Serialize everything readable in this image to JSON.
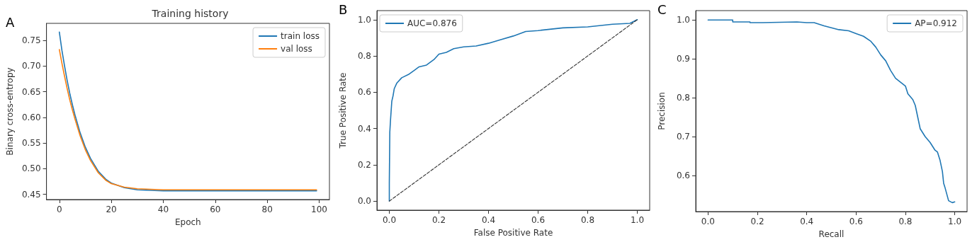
{
  "chart_data": [
    {
      "type": "line",
      "title": "Training history",
      "xlabel": "Epoch",
      "ylabel": "Binary cross-entropy",
      "annotations": [
        "A"
      ],
      "legend": "top right",
      "grid": false,
      "marker": "none",
      "line_style": "solid",
      "xlim": [
        -4.95,
        103.95
      ],
      "xticks": [
        0,
        20,
        40,
        60,
        80,
        100
      ],
      "ylim": [
        0.44,
        0.783
      ],
      "yticks": [
        {
          "value": 0.45,
          "label": "0.45"
        },
        {
          "value": 0.5,
          "label": "0.50"
        },
        {
          "value": 0.55,
          "label": "0.55"
        },
        {
          "value": 0.6,
          "label": "0.60"
        },
        {
          "value": 0.65,
          "label": "0.65"
        },
        {
          "value": 0.7,
          "label": "0.70"
        },
        {
          "value": 0.75,
          "label": "0.75"
        }
      ],
      "series": [
        {
          "name": "train loss",
          "color": "#1f77b4",
          "x": [
            0,
            1,
            2,
            3,
            4,
            5,
            6,
            8,
            10,
            12,
            15,
            18,
            20,
            25,
            30,
            35,
            40,
            60,
            80,
            99
          ],
          "values": [
            0.766,
            0.73,
            0.7,
            0.672,
            0.647,
            0.625,
            0.605,
            0.57,
            0.542,
            0.52,
            0.495,
            0.479,
            0.472,
            0.463,
            0.459,
            0.458,
            0.457,
            0.457,
            0.457,
            0.457
          ]
        },
        {
          "name": "val loss",
          "color": "#ff7f0e",
          "x": [
            0,
            1,
            2,
            3,
            4,
            5,
            6,
            8,
            10,
            12,
            15,
            18,
            20,
            25,
            30,
            35,
            40,
            60,
            80,
            99
          ],
          "values": [
            0.732,
            0.705,
            0.68,
            0.656,
            0.634,
            0.615,
            0.597,
            0.564,
            0.537,
            0.516,
            0.492,
            0.477,
            0.471,
            0.464,
            0.461,
            0.46,
            0.459,
            0.459,
            0.459,
            0.459
          ]
        }
      ]
    },
    {
      "type": "line",
      "xlabel": "False Positive Rate",
      "ylabel": "True Positive Rate",
      "annotations": [
        "B"
      ],
      "legend": "top left",
      "grid": false,
      "marker": "none",
      "xlim": [
        -0.05,
        1.05
      ],
      "xticks": [
        {
          "value": 0,
          "label": "0.0"
        },
        {
          "value": 0.2,
          "label": "0.2"
        },
        {
          "value": 0.4,
          "label": "0.4"
        },
        {
          "value": 0.6,
          "label": "0.6"
        },
        {
          "value": 0.8,
          "label": "0.8"
        },
        {
          "value": 1,
          "label": "1.0"
        }
      ],
      "ylim": [
        -0.05,
        1.05
      ],
      "yticks": [
        {
          "value": 0,
          "label": "0.0"
        },
        {
          "value": 0.2,
          "label": "0.2"
        },
        {
          "value": 0.4,
          "label": "0.4"
        },
        {
          "value": 0.6,
          "label": "0.6"
        },
        {
          "value": 0.8,
          "label": "0.8"
        },
        {
          "value": 1,
          "label": "1.0"
        }
      ],
      "series": [
        {
          "name": "AUC=0.876",
          "color": "#1f77b4",
          "line_style": "solid",
          "x": [
            0,
            0,
            0.002,
            0.005,
            0.01,
            0.015,
            0.02,
            0.03,
            0.05,
            0.08,
            0.1,
            0.12,
            0.15,
            0.18,
            0.2,
            0.23,
            0.26,
            0.3,
            0.35,
            0.4,
            0.45,
            0.5,
            0.55,
            0.6,
            0.7,
            0.8,
            0.9,
            0.97,
            1
          ],
          "values": [
            0,
            0.1,
            0.38,
            0.45,
            0.55,
            0.58,
            0.62,
            0.65,
            0.68,
            0.7,
            0.72,
            0.74,
            0.75,
            0.78,
            0.81,
            0.82,
            0.84,
            0.85,
            0.855,
            0.87,
            0.89,
            0.91,
            0.935,
            0.94,
            0.955,
            0.96,
            0.975,
            0.98,
            1
          ]
        },
        {
          "color": "#333333",
          "line_style": "dashed",
          "x": [
            0,
            1
          ],
          "values": [
            0,
            1
          ]
        }
      ]
    },
    {
      "type": "line",
      "xlabel": "Recall",
      "ylabel": "Precision",
      "annotations": [
        "C"
      ],
      "legend": "top right",
      "grid": false,
      "marker": "none",
      "line_style": "solid",
      "xlim": [
        -0.05,
        1.05
      ],
      "xticks": [
        {
          "value": 0,
          "label": "0.0"
        },
        {
          "value": 0.2,
          "label": "0.2"
        },
        {
          "value": 0.4,
          "label": "0.4"
        },
        {
          "value": 0.6,
          "label": "0.6"
        },
        {
          "value": 0.8,
          "label": "0.8"
        },
        {
          "value": 1,
          "label": "1.0"
        }
      ],
      "ylim": [
        0.507,
        1.024
      ],
      "yticks": [
        {
          "value": 0.6,
          "label": "0.6"
        },
        {
          "value": 0.7,
          "label": "0.7"
        },
        {
          "value": 0.8,
          "label": "0.8"
        },
        {
          "value": 0.9,
          "label": "0.9"
        },
        {
          "value": 1,
          "label": "1.0"
        }
      ],
      "series": [
        {
          "name": "AP=0.912",
          "color": "#1f77b4",
          "x": [
            0,
            0.1,
            0.1,
            0.17,
            0.17,
            0.22,
            0.36,
            0.4,
            0.43,
            0.47,
            0.5,
            0.53,
            0.57,
            0.6,
            0.63,
            0.66,
            0.68,
            0.7,
            0.72,
            0.74,
            0.76,
            0.78,
            0.8,
            0.81,
            0.83,
            0.84,
            0.85,
            0.86,
            0.88,
            0.9,
            0.92,
            0.93,
            0.94,
            0.95,
            0.955,
            0.96,
            0.975,
            0.99,
            1
          ],
          "values": [
            1,
            1,
            0.995,
            0.995,
            0.993,
            0.993,
            0.995,
            0.993,
            0.993,
            0.985,
            0.98,
            0.975,
            0.972,
            0.965,
            0.958,
            0.945,
            0.93,
            0.91,
            0.895,
            0.87,
            0.85,
            0.84,
            0.83,
            0.81,
            0.795,
            0.78,
            0.75,
            0.72,
            0.7,
            0.685,
            0.665,
            0.66,
            0.64,
            0.61,
            0.58,
            0.57,
            0.535,
            0.53,
            0.532
          ]
        }
      ]
    }
  ]
}
